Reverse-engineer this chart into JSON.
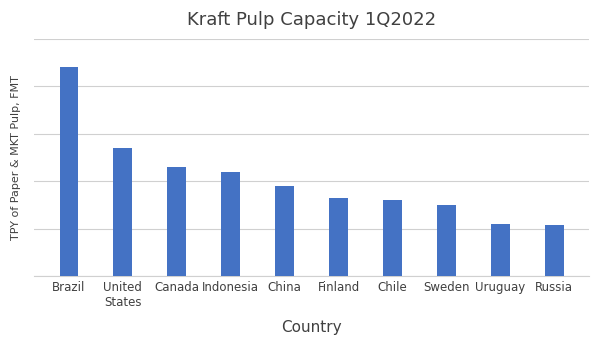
{
  "title": "Kraft Pulp Capacity 1Q2022",
  "xlabel": "Country",
  "ylabel": "TPY of Paper & MKT Pulp, FMT",
  "categories": [
    "Brazil",
    "United\nStates",
    "Canada",
    "Indonesia",
    "China",
    "Finland",
    "Chile",
    "Sweden",
    "Uruguay",
    "Russia"
  ],
  "values": [
    22000000,
    13500000,
    11500000,
    11000000,
    9500000,
    8200000,
    8000000,
    7500000,
    5500000,
    5400000
  ],
  "bar_color": "#4472C4",
  "background_color": "#ffffff",
  "title_fontsize": 13,
  "xlabel_fontsize": 11,
  "ylabel_fontsize": 8,
  "tick_fontsize": 8.5,
  "ylim": [
    0,
    25000000
  ],
  "bar_width": 0.35
}
